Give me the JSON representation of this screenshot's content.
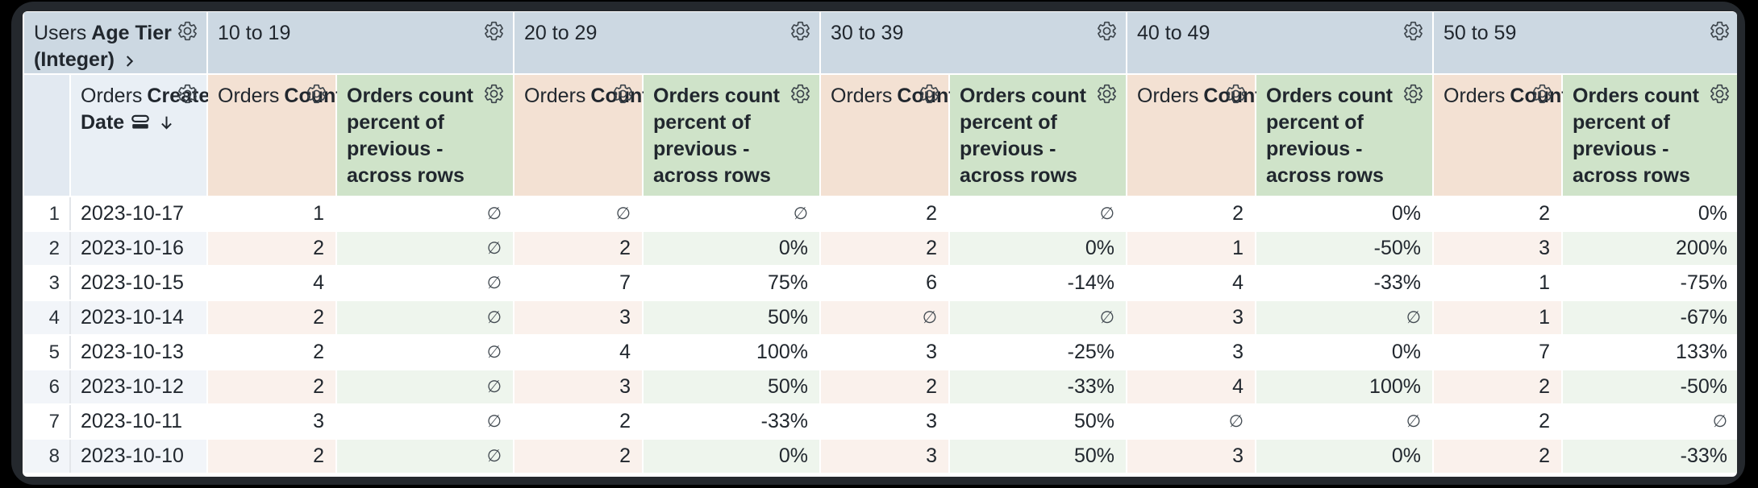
{
  "table": {
    "corner": {
      "view": "Users",
      "field": "Age Tier (Integer)"
    },
    "row_field": {
      "view": "Orders",
      "field": "Created Date"
    },
    "tiers": [
      "10 to 19",
      "20 to 29",
      "30 to 39",
      "40 to 49",
      "50 to 59"
    ],
    "measures": {
      "count": {
        "view": "Orders",
        "field": "Count"
      },
      "percent_label": "Orders count percent of previous - across rows"
    },
    "null_symbol": "∅",
    "sort": {
      "column": "Orders Created Date",
      "direction": "descending"
    },
    "rows": [
      {
        "n": "1",
        "date": "2023-10-17",
        "cells": [
          "1",
          "∅",
          "∅",
          "∅",
          "2",
          "∅",
          "2",
          "0%",
          "2",
          "0%"
        ]
      },
      {
        "n": "2",
        "date": "2023-10-16",
        "cells": [
          "2",
          "∅",
          "2",
          "0%",
          "2",
          "0%",
          "1",
          "-50%",
          "3",
          "200%"
        ]
      },
      {
        "n": "3",
        "date": "2023-10-15",
        "cells": [
          "4",
          "∅",
          "7",
          "75%",
          "6",
          "-14%",
          "4",
          "-33%",
          "1",
          "-75%"
        ]
      },
      {
        "n": "4",
        "date": "2023-10-14",
        "cells": [
          "2",
          "∅",
          "3",
          "50%",
          "∅",
          "∅",
          "3",
          "∅",
          "1",
          "-67%"
        ]
      },
      {
        "n": "5",
        "date": "2023-10-13",
        "cells": [
          "2",
          "∅",
          "4",
          "100%",
          "3",
          "-25%",
          "3",
          "0%",
          "7",
          "133%"
        ]
      },
      {
        "n": "6",
        "date": "2023-10-12",
        "cells": [
          "2",
          "∅",
          "3",
          "50%",
          "2",
          "-33%",
          "4",
          "100%",
          "2",
          "-50%"
        ]
      },
      {
        "n": "7",
        "date": "2023-10-11",
        "cells": [
          "3",
          "∅",
          "2",
          "-33%",
          "3",
          "50%",
          "∅",
          "∅",
          "2",
          "∅"
        ]
      },
      {
        "n": "8",
        "date": "2023-10-10",
        "cells": [
          "2",
          "∅",
          "2",
          "0%",
          "3",
          "50%",
          "3",
          "0%",
          "2",
          "-33%"
        ]
      }
    ]
  },
  "icons": {
    "gear": "gear-icon",
    "sort_desc": "sort-desc-arrow-icon",
    "stacked_bars": "stacked-bars-icon",
    "chevron": "chevron-right-icon"
  },
  "colors": {
    "tier_header_bg": "#ccd8e2",
    "row_header_bg": "#e9eff5",
    "count_header_bg": "#f3e1d3",
    "percent_header_bg": "#cfe3c9",
    "stripe_blue": "#f2f5f9",
    "stripe_peach": "#faf1ec",
    "stripe_green": "#eef5ed",
    "text": "#21272e",
    "frame": "#24282d"
  }
}
